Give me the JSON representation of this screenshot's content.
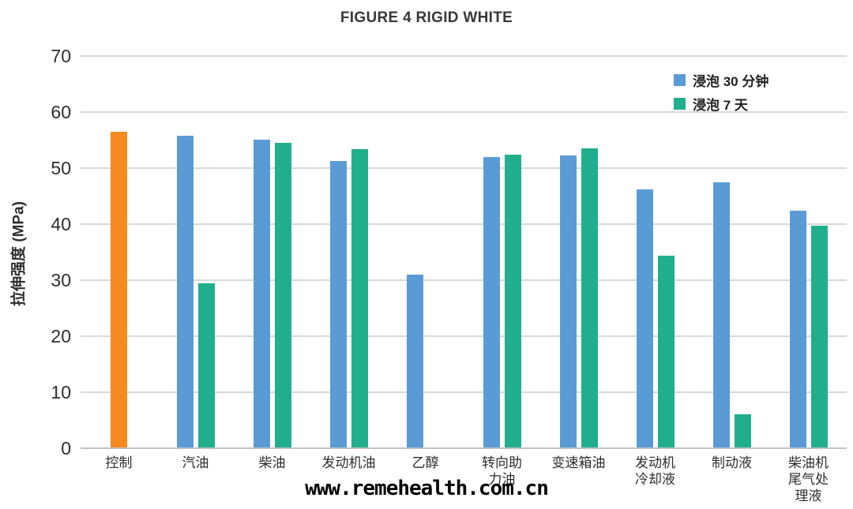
{
  "watermark": {
    "text": "www.remehealth.com.cn"
  },
  "chart_data": {
    "type": "bar",
    "title": "FIGURE 4 RIGID WHITE",
    "xlabel": "",
    "ylabel": "拉伸强度 (MPa)",
    "ylim": [
      0,
      70
    ],
    "yticks": [
      0,
      10,
      20,
      30,
      40,
      50,
      60,
      70
    ],
    "grid": "horizontal",
    "legend_position": "top-right",
    "categories": [
      "控制",
      "汽油",
      "柴油",
      "发动机油",
      "乙醇",
      "转向助力油",
      "变速箱油",
      "发动机冷却液",
      "制动液",
      "柴油机尾气处理液"
    ],
    "category_label_lines": [
      [
        "控制"
      ],
      [
        "汽油"
      ],
      [
        "柴油"
      ],
      [
        "发动机油"
      ],
      [
        "乙醇"
      ],
      [
        "转向助",
        "力油"
      ],
      [
        "变速箱油"
      ],
      [
        "发动机",
        "冷却液"
      ],
      [
        "制动液"
      ],
      [
        "柴油机",
        "尾气处",
        "理液"
      ]
    ],
    "series": [
      {
        "name": "浸泡 30 分钟",
        "color": "#5B9BD5",
        "values": [
          56.5,
          55.8,
          55.0,
          51.3,
          31.0,
          52.0,
          52.3,
          46.2,
          47.4,
          42.4
        ]
      },
      {
        "name": "浸泡 7 天",
        "color": "#21AE8C",
        "values": [
          null,
          29.5,
          54.5,
          53.4,
          null,
          52.4,
          53.5,
          34.3,
          6.0,
          39.7
        ]
      }
    ],
    "bar_color_overrides": [
      {
        "series": 0,
        "category": 0,
        "color": "#F6891F"
      }
    ],
    "empty_slot_mode": [
      "collapse",
      "",
      "",
      "",
      "reserve",
      "",
      "",
      "",
      "",
      ""
    ],
    "colors": {
      "gridline": "#D9D9D9",
      "axis_line": "#C2C2C2",
      "text": "#2e2e2e",
      "title": "#383838",
      "control_bar": "#F6891F",
      "series_30min": "#5B9BD5",
      "series_7day": "#21AE8C"
    }
  }
}
